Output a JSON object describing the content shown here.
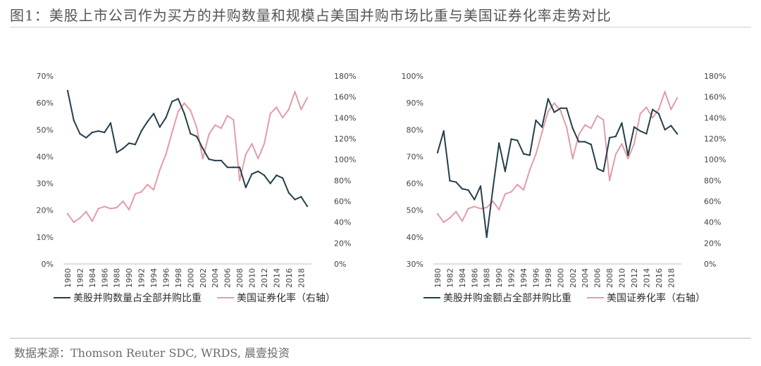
{
  "figure": {
    "title": "图1：美股上市公司作为买方的并购数量和规模占美国并购市场比重与美国证券化率走势对比",
    "source": "数据来源：Thomson Reuter SDC, WRDS, 晨壹投资"
  },
  "charts": [
    {
      "x": [
        1980,
        1981,
        1982,
        1983,
        1984,
        1985,
        1986,
        1987,
        1988,
        1989,
        1990,
        1991,
        1992,
        1993,
        1994,
        1995,
        1996,
        1997,
        1998,
        1999,
        2000,
        2001,
        2002,
        2003,
        2004,
        2005,
        2006,
        2007,
        2008,
        2009,
        2010,
        2011,
        2012,
        2013,
        2014,
        2015,
        2016,
        2017,
        2018,
        2019
      ],
      "x_tick_labels": [
        "1980",
        "1982",
        "1984",
        "1986",
        "1988",
        "1990",
        "1992",
        "1994",
        "1996",
        "1998",
        "2000",
        "2002",
        "2004",
        "2006",
        "2008",
        "2010",
        "2012",
        "2014",
        "2016",
        "2018"
      ],
      "left_axis": {
        "min": 0,
        "max": 70,
        "ticks": [
          "0%",
          "10%",
          "20%",
          "30%",
          "40%",
          "50%",
          "60%",
          "70%"
        ]
      },
      "right_axis": {
        "min": 0,
        "max": 180,
        "ticks": [
          "0%",
          "20%",
          "40%",
          "60%",
          "80%",
          "100%",
          "120%",
          "140%",
          "160%",
          "180%"
        ]
      },
      "series": [
        {
          "name": "美股并购数量占全部并购比重",
          "axis": "left",
          "color": "#243f4a",
          "values": [
            64.5,
            53.5,
            48.5,
            47.0,
            49.0,
            49.5,
            49.0,
            52.5,
            41.5,
            43.0,
            45.0,
            44.5,
            49.5,
            53.0,
            56.0,
            51.0,
            54.5,
            60.5,
            61.5,
            56.0,
            48.5,
            47.5,
            43.0,
            39.0,
            38.5,
            38.5,
            36.0,
            36.0,
            36.0,
            28.5,
            33.5,
            34.5,
            33.0,
            30.0,
            33.0,
            32.0,
            26.5,
            24.0,
            25.0,
            21.5
          ]
        },
        {
          "name": "美国证券化率（右轴）",
          "axis": "right",
          "color": "#e39ca8",
          "values": [
            48,
            40,
            44,
            50,
            41,
            53,
            55,
            53,
            54,
            60,
            52,
            67,
            69,
            76,
            71,
            90,
            105,
            126,
            146,
            154,
            147,
            131,
            101,
            124,
            133,
            130,
            142,
            138,
            80,
            105,
            115,
            101,
            115,
            144,
            150,
            140,
            148,
            165,
            148,
            159
          ]
        }
      ]
    },
    {
      "x": [
        1980,
        1981,
        1982,
        1983,
        1984,
        1985,
        1986,
        1987,
        1988,
        1989,
        1990,
        1991,
        1992,
        1993,
        1994,
        1995,
        1996,
        1997,
        1998,
        1999,
        2000,
        2001,
        2002,
        2003,
        2004,
        2005,
        2006,
        2007,
        2008,
        2009,
        2010,
        2011,
        2012,
        2013,
        2014,
        2015,
        2016,
        2017,
        2018,
        2019
      ],
      "x_tick_labels": [
        "1980",
        "1982",
        "1984",
        "1986",
        "1988",
        "1990",
        "1992",
        "1994",
        "1996",
        "1998",
        "2000",
        "2002",
        "2004",
        "2006",
        "2008",
        "2010",
        "2012",
        "2014",
        "2016",
        "2018"
      ],
      "left_axis": {
        "min": 30,
        "max": 100,
        "ticks": [
          "30%",
          "40%",
          "50%",
          "60%",
          "70%",
          "80%",
          "90%",
          "100%"
        ]
      },
      "right_axis": {
        "min": 0,
        "max": 180,
        "ticks": [
          "0%",
          "20%",
          "40%",
          "60%",
          "80%",
          "100%",
          "120%",
          "140%",
          "160%",
          "180%"
        ]
      },
      "series": [
        {
          "name": "美股并购金额占全部并购比重",
          "axis": "left",
          "color": "#243f4a",
          "values": [
            71.5,
            79.5,
            61.0,
            60.5,
            58.0,
            57.5,
            54.0,
            59.0,
            40.0,
            58.0,
            75.0,
            64.5,
            76.5,
            76.0,
            71.0,
            70.5,
            83.5,
            81.0,
            91.5,
            86.5,
            88.0,
            88.0,
            80.5,
            75.5,
            75.5,
            74.5,
            65.5,
            64.5,
            77.0,
            77.5,
            82.5,
            70.5,
            81.0,
            79.5,
            78.5,
            87.5,
            86.0,
            80.0,
            81.5,
            78.5
          ]
        },
        {
          "name": "美国证券化率（右轴）",
          "axis": "right",
          "color": "#e39ca8",
          "values": [
            48,
            40,
            44,
            50,
            41,
            53,
            55,
            53,
            54,
            60,
            52,
            67,
            69,
            76,
            71,
            90,
            105,
            126,
            146,
            154,
            147,
            131,
            101,
            124,
            133,
            130,
            142,
            138,
            80,
            105,
            115,
            101,
            115,
            144,
            150,
            140,
            148,
            165,
            148,
            159
          ]
        }
      ]
    }
  ],
  "chart_data": [
    {
      "type": "line",
      "chart": "left",
      "note_ref": "charts.0"
    },
    {
      "type": "line",
      "chart": "right",
      "note_ref": "charts.1"
    }
  ]
}
